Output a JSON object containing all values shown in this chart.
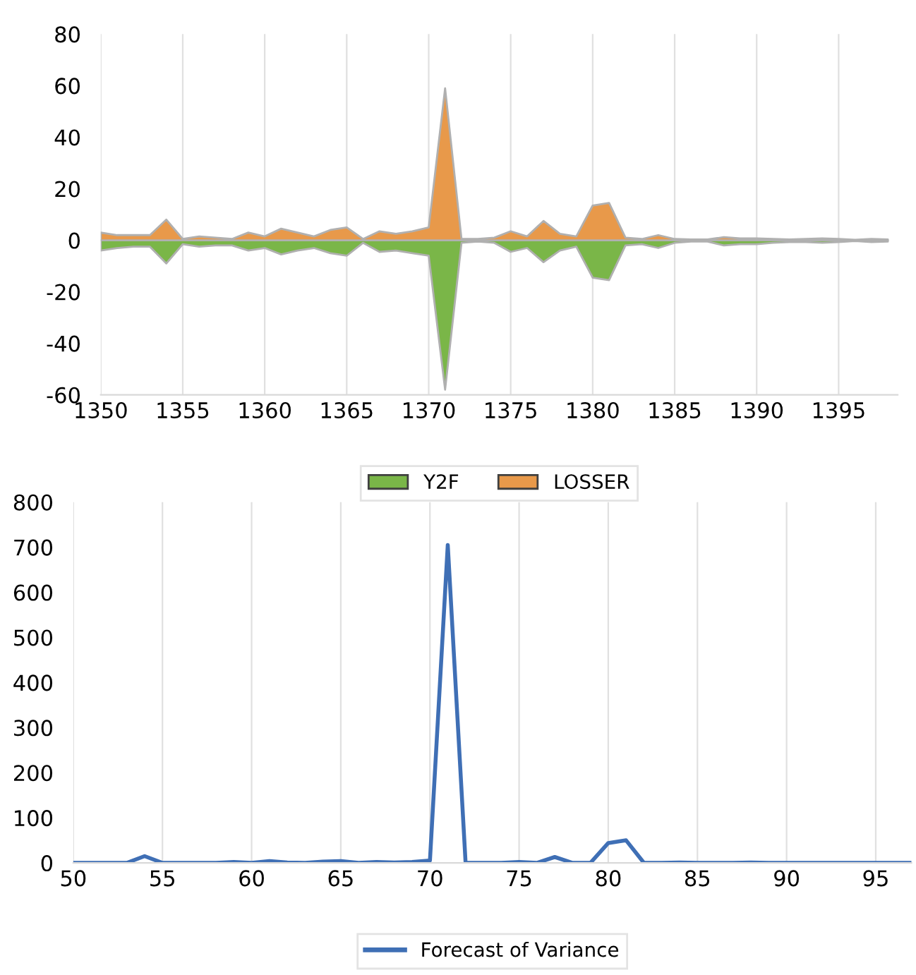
{
  "chart_data": [
    {
      "type": "area",
      "x": [
        1350,
        1351,
        1352,
        1353,
        1354,
        1355,
        1356,
        1357,
        1358,
        1359,
        1360,
        1361,
        1362,
        1363,
        1364,
        1365,
        1366,
        1367,
        1368,
        1369,
        1370,
        1371,
        1372,
        1373,
        1374,
        1375,
        1376,
        1377,
        1378,
        1379,
        1380,
        1381,
        1382,
        1383,
        1384,
        1385,
        1386,
        1387,
        1388,
        1389,
        1390,
        1391,
        1392,
        1393,
        1394,
        1395,
        1396,
        1397,
        1398
      ],
      "series": [
        {
          "name": "Y2F",
          "color": "#7ab648",
          "values": [
            -4,
            -3,
            -2.5,
            -2.5,
            -9,
            -1.5,
            -2.5,
            -2,
            -2,
            -4,
            -3,
            -5.5,
            -4,
            -3,
            -5,
            -6,
            -1,
            -4.5,
            -4,
            -5,
            -6,
            -58,
            -1,
            -0.5,
            -1,
            -4.5,
            -3,
            -8.5,
            -4,
            -2.5,
            -14.5,
            -15.5,
            -2,
            -1.5,
            -3,
            -1,
            -0.5,
            -0.5,
            -2,
            -1.5,
            -1.5,
            -1,
            -0.7,
            -0.7,
            -1,
            -0.7,
            -0.3,
            -0.7,
            -0.5
          ]
        },
        {
          "name": "LOSSER",
          "color": "#e8994a",
          "values": [
            3,
            2,
            2,
            2,
            8,
            0.5,
            1.5,
            1,
            0.5,
            3,
            1.5,
            4.5,
            3,
            1.5,
            4,
            5,
            0.5,
            3.5,
            2.5,
            3.5,
            5,
            59,
            0.5,
            0.5,
            1,
            3.5,
            1.5,
            7.5,
            2.5,
            1.5,
            13.5,
            14.5,
            1,
            0.5,
            2,
            0.5,
            0.3,
            0.3,
            1.2,
            0.7,
            0.7,
            0.5,
            0.3,
            0.5,
            0.7,
            0.5,
            0.2,
            0.5,
            0.3
          ]
        }
      ],
      "xlim": [
        1350,
        1398.6
      ],
      "xticks": [
        1350,
        1355,
        1360,
        1365,
        1370,
        1375,
        1380,
        1385,
        1390,
        1395
      ],
      "ylim": [
        -60,
        80
      ],
      "yticks": [
        -60,
        -40,
        -20,
        0,
        20,
        40,
        60,
        80
      ],
      "grid": "x",
      "legend": "bottom"
    },
    {
      "type": "line",
      "x": [
        50,
        51,
        52,
        53,
        54,
        55,
        56,
        57,
        58,
        59,
        60,
        61,
        62,
        63,
        64,
        65,
        66,
        67,
        68,
        69,
        70,
        71,
        72,
        73,
        74,
        75,
        76,
        77,
        78,
        79,
        80,
        81,
        82,
        83,
        84,
        85,
        86,
        87,
        88,
        89,
        90,
        91,
        92,
        93,
        94,
        95,
        96,
        97
      ],
      "series": [
        {
          "name": "Forecast of Variance",
          "color": "#3f6fb5",
          "values": [
            0,
            0,
            0,
            0,
            15,
            0,
            0,
            0,
            0,
            2,
            0,
            4,
            1,
            0,
            3,
            4,
            0,
            2,
            1,
            2,
            5,
            705,
            0,
            0,
            0,
            2,
            0,
            13,
            0,
            0,
            44,
            50,
            0,
            0,
            1,
            0,
            0,
            0,
            1,
            0,
            0,
            0,
            0,
            0,
            0,
            0,
            0,
            0
          ]
        }
      ],
      "xlim": [
        50,
        97
      ],
      "xticks": [
        50,
        55,
        60,
        65,
        70,
        75,
        80,
        85,
        90,
        95
      ],
      "ylim": [
        0,
        800
      ],
      "yticks": [
        0,
        100,
        200,
        300,
        400,
        500,
        600,
        700,
        800
      ],
      "grid": "x",
      "legend": "bottom",
      "marker": "none",
      "line_style": "solid"
    }
  ]
}
